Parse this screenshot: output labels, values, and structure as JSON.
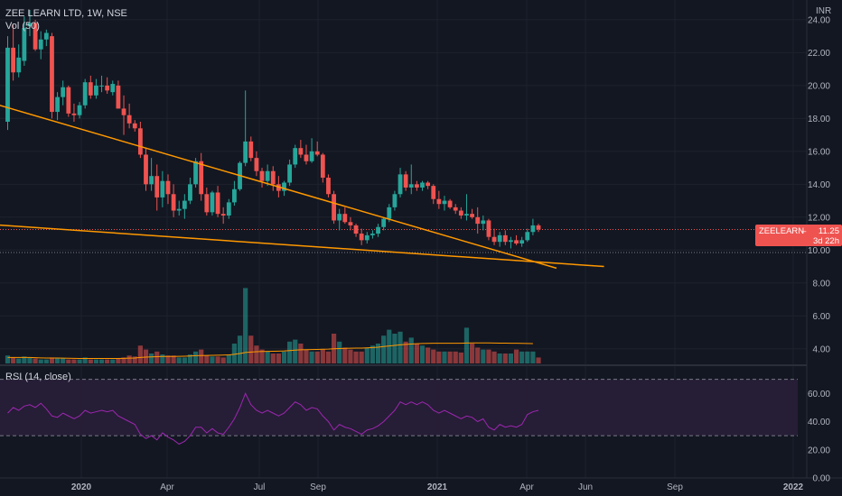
{
  "header": {
    "title": "ZEE LEARN LTD, 1W, NSE",
    "volume_label": "Vol (50)",
    "rsi_label": "RSI (14, close)",
    "currency": "INR"
  },
  "price_badge": {
    "symbol": "ZEELEARN",
    "price": "11.25",
    "countdown": "3d 22h"
  },
  "colors": {
    "background": "#131722",
    "up": "#26a69a",
    "down": "#ef5350",
    "trendline": "#ff9800",
    "rsi_line": "#9c27b0",
    "rsi_band": "#2a1e3a",
    "badge": "#ef5350",
    "axis_text": "#b2b5be",
    "grid": "#1e222d"
  },
  "chart_data": {
    "type": "candlestick",
    "price_axis": {
      "ticks": [
        "24.00",
        "22.00",
        "20.00",
        "18.00",
        "16.00",
        "14.00",
        "12.00",
        "10.00",
        "8.00",
        "6.00",
        "4.00"
      ],
      "range": [
        3.0,
        25.2
      ]
    },
    "rsi_axis": {
      "ticks": [
        "60.00",
        "40.00",
        "20.00",
        "0.00"
      ],
      "range": [
        0,
        80
      ],
      "upper_band": 70,
      "lower_band": 30
    },
    "time_axis": {
      "ticks": [
        "2020",
        "Apr",
        "Jul",
        "Sep",
        "2021",
        "Apr",
        "Jun",
        "Sep",
        "2022"
      ]
    },
    "candles": [
      [
        17.8,
        23.0,
        17.3,
        22.3
      ],
      [
        22.3,
        23.7,
        20.3,
        20.8
      ],
      [
        20.8,
        22.5,
        20.5,
        21.7
      ],
      [
        21.5,
        24.2,
        21.2,
        23.5
      ],
      [
        23.6,
        24.6,
        23.0,
        23.8
      ],
      [
        23.8,
        24.0,
        22.1,
        22.2
      ],
      [
        22.2,
        23.3,
        21.6,
        22.8
      ],
      [
        22.8,
        23.4,
        22.4,
        23.2
      ],
      [
        23.0,
        23.2,
        18.0,
        18.4
      ],
      [
        18.4,
        19.6,
        17.9,
        19.3
      ],
      [
        19.3,
        20.3,
        18.8,
        19.9
      ],
      [
        19.9,
        20.0,
        18.1,
        18.3
      ],
      [
        18.3,
        18.9,
        17.8,
        18.2
      ],
      [
        18.2,
        19.0,
        18.0,
        18.8
      ],
      [
        18.8,
        20.4,
        18.6,
        20.2
      ],
      [
        20.2,
        20.6,
        19.2,
        19.4
      ],
      [
        19.4,
        20.4,
        19.2,
        20.0
      ],
      [
        20.0,
        20.6,
        19.6,
        20.0
      ],
      [
        20.0,
        20.5,
        19.5,
        19.7
      ],
      [
        19.6,
        20.3,
        19.4,
        20.1
      ],
      [
        20.0,
        20.3,
        18.6,
        18.6
      ],
      [
        18.6,
        19.4,
        17.0,
        18.2
      ],
      [
        18.2,
        18.9,
        17.4,
        17.7
      ],
      [
        17.7,
        17.9,
        17.2,
        17.4
      ],
      [
        17.4,
        17.8,
        15.6,
        15.8
      ],
      [
        15.8,
        16.2,
        13.6,
        14.0
      ],
      [
        14.0,
        15.6,
        13.6,
        14.5
      ],
      [
        14.5,
        15.2,
        12.4,
        13.2
      ],
      [
        13.2,
        14.8,
        12.6,
        14.2
      ],
      [
        14.2,
        14.6,
        12.8,
        13.4
      ],
      [
        13.4,
        14.0,
        12.0,
        12.4
      ],
      [
        12.4,
        13.0,
        12.1,
        12.5
      ],
      [
        12.5,
        13.4,
        11.9,
        13.0
      ],
      [
        13.0,
        14.4,
        12.8,
        14.0
      ],
      [
        14.0,
        15.6,
        13.8,
        15.4
      ],
      [
        15.4,
        15.9,
        13.0,
        13.4
      ],
      [
        13.4,
        13.8,
        12.1,
        12.3
      ],
      [
        12.3,
        13.6,
        12.1,
        13.5
      ],
      [
        13.5,
        13.9,
        12.0,
        12.2
      ],
      [
        12.2,
        12.6,
        11.6,
        12.1
      ],
      [
        12.1,
        13.1,
        11.9,
        12.9
      ],
      [
        12.9,
        14.2,
        12.7,
        13.7
      ],
      [
        13.7,
        15.4,
        13.6,
        15.3
      ],
      [
        15.3,
        19.7,
        15.1,
        16.6
      ],
      [
        16.6,
        16.9,
        15.4,
        15.6
      ],
      [
        15.6,
        16.0,
        14.5,
        14.8
      ],
      [
        14.8,
        15.0,
        13.8,
        14.2
      ],
      [
        14.2,
        15.2,
        13.9,
        14.8
      ],
      [
        14.8,
        15.1,
        13.6,
        14.0
      ],
      [
        14.0,
        14.5,
        13.2,
        13.6
      ],
      [
        13.6,
        14.2,
        13.3,
        14.1
      ],
      [
        14.1,
        15.5,
        13.9,
        15.2
      ],
      [
        15.2,
        16.4,
        15.0,
        16.2
      ],
      [
        16.2,
        16.7,
        15.6,
        15.8
      ],
      [
        15.8,
        16.4,
        15.2,
        15.4
      ],
      [
        15.4,
        16.8,
        15.3,
        16.0
      ],
      [
        16.0,
        16.6,
        15.7,
        15.8
      ],
      [
        15.8,
        15.9,
        14.1,
        14.4
      ],
      [
        14.4,
        14.6,
        13.2,
        13.4
      ],
      [
        13.4,
        13.6,
        11.6,
        11.8
      ],
      [
        11.8,
        12.5,
        11.2,
        12.2
      ],
      [
        12.2,
        12.6,
        11.6,
        11.7
      ],
      [
        11.7,
        12.0,
        11.2,
        11.5
      ],
      [
        11.5,
        11.6,
        10.8,
        11.0
      ],
      [
        11.0,
        11.3,
        10.3,
        10.6
      ],
      [
        10.6,
        11.1,
        10.4,
        10.9
      ],
      [
        10.9,
        11.2,
        10.7,
        11.0
      ],
      [
        11.0,
        11.6,
        10.8,
        11.4
      ],
      [
        11.4,
        12.0,
        11.2,
        11.9
      ],
      [
        11.9,
        12.8,
        11.7,
        12.6
      ],
      [
        12.6,
        13.6,
        12.4,
        13.4
      ],
      [
        13.4,
        15.0,
        13.2,
        14.6
      ],
      [
        14.6,
        14.8,
        13.6,
        13.8
      ],
      [
        13.8,
        15.2,
        13.4,
        14.0
      ],
      [
        14.0,
        14.2,
        13.6,
        13.8
      ],
      [
        13.8,
        14.2,
        13.6,
        14.1
      ],
      [
        14.1,
        14.2,
        13.7,
        13.9
      ],
      [
        13.9,
        14.0,
        12.8,
        13.1
      ],
      [
        13.1,
        13.6,
        12.5,
        12.8
      ],
      [
        12.8,
        13.3,
        12.4,
        13.0
      ],
      [
        13.0,
        13.1,
        12.5,
        12.6
      ],
      [
        12.6,
        12.8,
        12.2,
        12.4
      ],
      [
        12.4,
        12.6,
        11.9,
        12.1
      ],
      [
        12.1,
        13.4,
        11.8,
        12.2
      ],
      [
        12.2,
        12.5,
        11.9,
        12.0
      ],
      [
        12.0,
        12.6,
        11.0,
        11.6
      ],
      [
        11.6,
        12.1,
        11.2,
        11.8
      ],
      [
        11.8,
        11.9,
        10.6,
        10.8
      ],
      [
        10.8,
        11.3,
        10.3,
        10.5
      ],
      [
        10.5,
        11.1,
        10.2,
        10.9
      ],
      [
        10.9,
        11.2,
        10.3,
        10.5
      ],
      [
        10.5,
        10.8,
        10.1,
        10.6
      ],
      [
        10.6,
        10.9,
        10.3,
        10.4
      ],
      [
        10.4,
        10.8,
        10.2,
        10.6
      ],
      [
        10.6,
        11.3,
        10.5,
        11.1
      ],
      [
        11.1,
        11.9,
        10.9,
        11.5
      ],
      [
        11.5,
        11.6,
        11.1,
        11.25
      ]
    ],
    "volume_scale_max": 100,
    "volumes": [
      8,
      6,
      5,
      7,
      6,
      5,
      4,
      4,
      6,
      5,
      5,
      4,
      4,
      4,
      6,
      4,
      4,
      4,
      4,
      4,
      5,
      6,
      8,
      7,
      18,
      14,
      10,
      12,
      9,
      8,
      8,
      6,
      6,
      9,
      12,
      14,
      8,
      7,
      7,
      6,
      9,
      20,
      28,
      76,
      28,
      18,
      14,
      12,
      10,
      10,
      12,
      22,
      24,
      20,
      14,
      12,
      12,
      14,
      12,
      30,
      22,
      16,
      14,
      12,
      12,
      16,
      18,
      20,
      28,
      34,
      30,
      32,
      22,
      26,
      20,
      18,
      16,
      14,
      12,
      12,
      12,
      12,
      11,
      36,
      20,
      16,
      14,
      14,
      12,
      10,
      10,
      10,
      14,
      12,
      12,
      12,
      6
    ],
    "volume_ma": [
      6,
      6,
      6,
      6,
      6,
      5.8,
      5.6,
      5.5,
      5.5,
      5.4,
      5.3,
      5.2,
      5.1,
      5,
      5,
      5,
      5,
      5,
      5,
      5,
      5,
      5.1,
      5.3,
      5.5,
      6,
      6.4,
      6.6,
      6.8,
      7,
      7,
      7.1,
      7.2,
      7.3,
      7.5,
      7.8,
      8,
      8.1,
      8.2,
      8.3,
      8.4,
      8.6,
      9.2,
      10,
      11,
      11.5,
      11.8,
      12,
      12.2,
      12.3,
      12.4,
      12.6,
      13,
      13.4,
      13.7,
      13.9,
      14,
      14.1,
      14.3,
      14.4,
      14.8,
      15,
      15.2,
      15.3,
      15.4,
      15.5,
      15.7,
      16,
      16.4,
      17,
      17.6,
      18.2,
      18.8,
      19.2,
      19.6,
      19.9,
      20.1,
      20.2,
      20.3,
      20.3,
      20.3,
      20.3,
      20.3,
      20.3,
      20.6,
      20.7,
      20.7,
      20.7,
      20.7,
      20.6,
      20.5,
      20.4,
      20.3,
      20.3,
      20.2,
      20.1,
      20
    ],
    "rsi": [
      46,
      50,
      48,
      51,
      52,
      50,
      53,
      49,
      44,
      43,
      46,
      44,
      42,
      44,
      48,
      46,
      47,
      48,
      47,
      48,
      44,
      42,
      40,
      38,
      31,
      28,
      30,
      27,
      32,
      29,
      27,
      24,
      26,
      30,
      36,
      36,
      32,
      35,
      32,
      31,
      36,
      42,
      50,
      60,
      52,
      48,
      46,
      48,
      46,
      44,
      46,
      50,
      54,
      52,
      48,
      50,
      49,
      44,
      40,
      34,
      38,
      36,
      35,
      33,
      31,
      34,
      35,
      37,
      40,
      44,
      48,
      54,
      52,
      54,
      52,
      54,
      52,
      48,
      46,
      48,
      46,
      44,
      42,
      44,
      43,
      40,
      42,
      36,
      34,
      38,
      36,
      37,
      36,
      38,
      45,
      47,
      48
    ],
    "rsi_month_ticks": [
      1,
      2,
      3
    ],
    "trendlines": [
      {
        "from": [
          "2019-09",
          20.0
        ],
        "to": [
          "2021-09",
          8.9
        ]
      },
      {
        "from": [
          "2019-09",
          11.8
        ],
        "to": [
          "2021-11",
          9.0
        ]
      }
    ],
    "last_price_line": 11.25,
    "reference_line": 9.85
  }
}
